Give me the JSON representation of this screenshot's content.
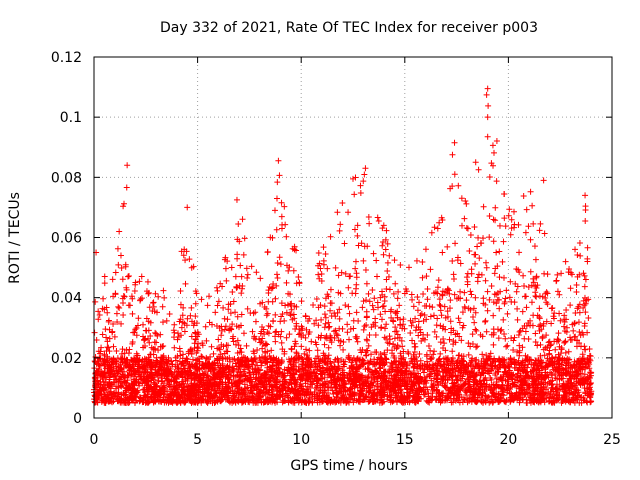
{
  "chart_data": {
    "type": "scatter",
    "title": "Day 332 of 2021, Rate Of TEC Index for receiver p003",
    "xlabel": "GPS time / hours",
    "ylabel": "ROTI / TECUs",
    "xlim": [
      0,
      25
    ],
    "ylim": [
      0,
      0.12
    ],
    "xticks": [
      0,
      5,
      10,
      15,
      20,
      25
    ],
    "xtick_labels": [
      "0",
      "5",
      "10",
      "15",
      "20",
      "25"
    ],
    "yticks": [
      0,
      0.02,
      0.04,
      0.06,
      0.08,
      0.1,
      0.12
    ],
    "ytick_labels": [
      "0",
      "0.02",
      "0.04",
      "0.06",
      "0.08",
      "0.1",
      "0.12"
    ],
    "grid": true,
    "marker": "+",
    "series_color": "#ff0000",
    "data_extent_x": [
      0,
      24
    ],
    "baseline_band_y": [
      0.005,
      0.02
    ],
    "envelope_x": [
      0,
      1,
      1.6,
      2,
      3,
      4,
      4.5,
      5,
      6,
      7,
      8,
      8.9,
      10,
      11,
      12.5,
      13,
      14,
      15,
      16,
      17,
      17.5,
      18,
      19,
      20,
      21,
      22,
      23,
      23.7,
      24
    ],
    "envelope_y": [
      0.045,
      0.05,
      0.084,
      0.05,
      0.045,
      0.045,
      0.07,
      0.04,
      0.045,
      0.072,
      0.05,
      0.085,
      0.048,
      0.06,
      0.08,
      0.083,
      0.065,
      0.05,
      0.06,
      0.07,
      0.091,
      0.075,
      0.11,
      0.07,
      0.079,
      0.06,
      0.05,
      0.075,
      0.03
    ],
    "highlighted_points": [
      {
        "x": 19.0,
        "y": 0.1095
      },
      {
        "x": 19.0,
        "y": 0.1
      },
      {
        "x": 19.0,
        "y": 0.0935
      },
      {
        "x": 17.4,
        "y": 0.0915
      },
      {
        "x": 17.3,
        "y": 0.0875
      },
      {
        "x": 8.9,
        "y": 0.0855
      },
      {
        "x": 1.6,
        "y": 0.084
      },
      {
        "x": 13.1,
        "y": 0.083
      },
      {
        "x": 12.5,
        "y": 0.0795
      },
      {
        "x": 21.7,
        "y": 0.079
      },
      {
        "x": 6.9,
        "y": 0.0725
      },
      {
        "x": 4.5,
        "y": 0.07
      },
      {
        "x": 23.7,
        "y": 0.074
      },
      {
        "x": 0.1,
        "y": 0.055
      }
    ],
    "n_points_approx": 5500,
    "random_seed": 332
  }
}
